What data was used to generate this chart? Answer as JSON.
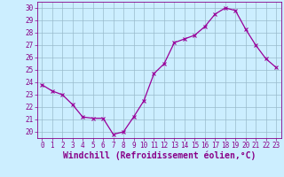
{
  "x": [
    0,
    1,
    2,
    3,
    4,
    5,
    6,
    7,
    8,
    9,
    10,
    11,
    12,
    13,
    14,
    15,
    16,
    17,
    18,
    19,
    20,
    21,
    22,
    23
  ],
  "y": [
    23.8,
    23.3,
    23.0,
    22.2,
    21.2,
    21.1,
    21.1,
    19.8,
    20.0,
    21.2,
    22.5,
    24.7,
    25.5,
    27.2,
    27.5,
    27.8,
    28.5,
    29.5,
    30.0,
    29.8,
    28.3,
    27.0,
    25.9,
    25.2
  ],
  "line_color": "#990099",
  "marker": "x",
  "marker_size": 3,
  "marker_linewidth": 0.8,
  "line_width": 0.9,
  "bg_color": "#cceeff",
  "grid_color": "#99bbcc",
  "xlabel": "Windchill (Refroidissement éolien,°C)",
  "ylim": [
    19.5,
    30.5
  ],
  "xlim": [
    -0.5,
    23.5
  ],
  "yticks": [
    20,
    21,
    22,
    23,
    24,
    25,
    26,
    27,
    28,
    29,
    30
  ],
  "xticks": [
    0,
    1,
    2,
    3,
    4,
    5,
    6,
    7,
    8,
    9,
    10,
    11,
    12,
    13,
    14,
    15,
    16,
    17,
    18,
    19,
    20,
    21,
    22,
    23
  ],
  "tick_fontsize": 5.5,
  "xlabel_fontsize": 7,
  "axis_color": "#880088",
  "spine_color": "#880088"
}
